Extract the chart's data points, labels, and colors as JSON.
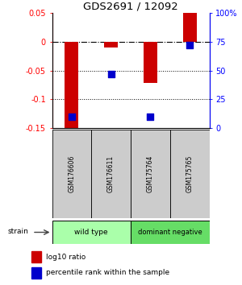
{
  "title": "GDS2691 / 12092",
  "samples": [
    "GSM176606",
    "GSM176611",
    "GSM175764",
    "GSM175765"
  ],
  "log10_ratio": [
    -0.153,
    -0.01,
    -0.072,
    0.05
  ],
  "percentile_rank": [
    10,
    47,
    10,
    72
  ],
  "ylim_left": [
    -0.15,
    0.05
  ],
  "ylim_right": [
    0,
    100
  ],
  "yticks_left": [
    -0.15,
    -0.1,
    -0.05,
    0.0,
    0.05
  ],
  "yticks_left_labels": [
    "-0.15",
    "-0.1",
    "-0.05",
    "0",
    "0.05"
  ],
  "yticks_right": [
    0,
    25,
    50,
    75,
    100
  ],
  "yticks_right_labels": [
    "0",
    "25",
    "50",
    "75",
    "100%"
  ],
  "bar_color": "#cc0000",
  "dot_color": "#0000cc",
  "bar_width": 0.35,
  "wt_color": "#aaffaa",
  "dn_color": "#66dd66",
  "sample_box_color": "#cccccc",
  "legend_red_label": "log10 ratio",
  "legend_blue_label": "percentile rank within the sample",
  "strain_label": "strain"
}
